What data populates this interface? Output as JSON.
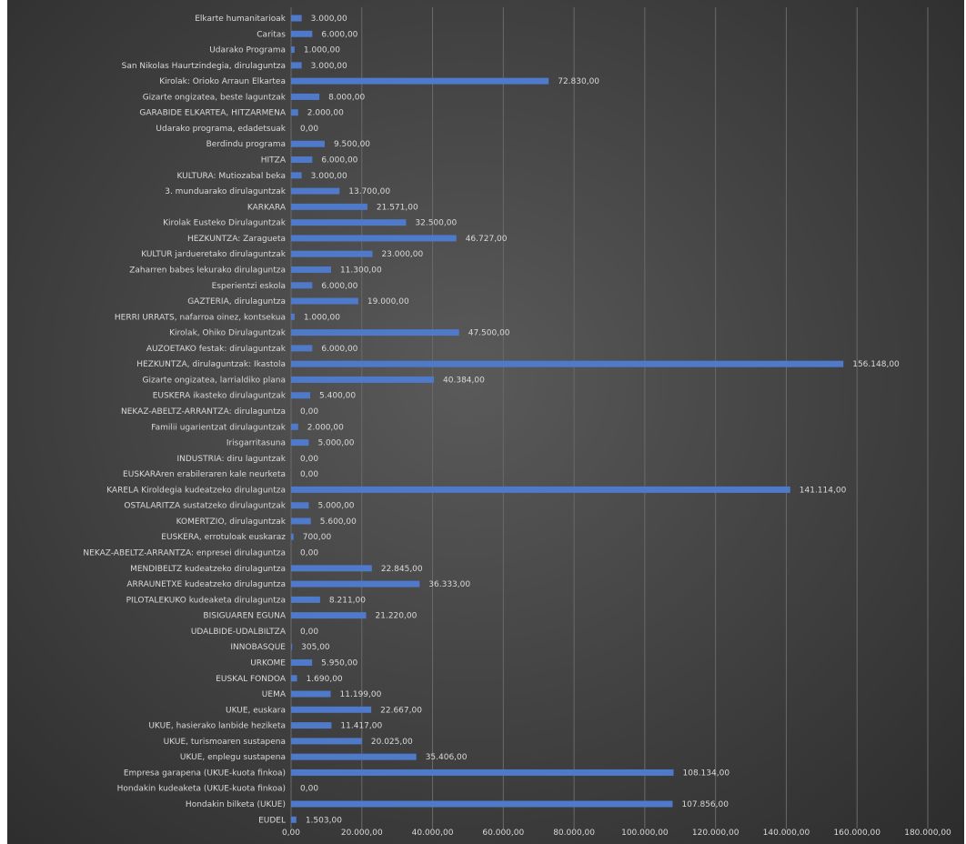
{
  "chart_data": {
    "type": "bar",
    "orientation": "horizontal",
    "title": "",
    "xlabel": "",
    "ylabel": "",
    "xlim": [
      0,
      180000
    ],
    "grid": true,
    "legend": "none",
    "bar_color": "#4f79c9",
    "background_color": "#3f3f3f",
    "x_ticks": [
      "0,00",
      "20.000,00",
      "40.000,00",
      "60.000,00",
      "80.000,00",
      "100.000,00",
      "120.000,00",
      "140.000,00",
      "160.000,00",
      "180.000,00"
    ],
    "categories": [
      "Elkarte humanitarioak",
      "Caritas",
      "Udarako Programa",
      "San Nikolas Haurtzindegia, dirulaguntza",
      "Kirolak: Orioko Arraun Elkartea",
      "Gizarte ongizatea, beste laguntzak",
      "GARABIDE ELKARTEA, HITZARMENA",
      "Udarako programa, edadetsuak",
      "Berdindu programa",
      "HITZA",
      "KULTURA: Mutiozabal beka",
      "3. munduarako dirulaguntzak",
      "KARKARA",
      "Kirolak Eusteko Dirulaguntzak",
      "HEZKUNTZA: Zaragueta",
      "KULTUR jardueretako dirulaguntzak",
      "Zaharren babes lekurako dirulaguntza",
      "Esperientzi eskola",
      "GAZTERIA, dirulaguntza",
      "HERRI URRATS, nafarroa oinez, kontsekua",
      "Kirolak, Ohiko Dirulaguntzak",
      "AUZOETAKO festak: dirulaguntzak",
      "HEZKUNTZA, dirulaguntzak: Ikastola",
      "Gizarte ongizatea, larrialdiko plana",
      "EUSKERA ikasteko dirulaguntzak",
      "NEKAZ-ABELTZ-ARRANTZA: dirulaguntza",
      "Familii ugarientzat dirulaguntzak",
      "Irisgarritasuna",
      "INDUSTRIA: diru laguntzak",
      "EUSKARAren erabileraren kale neurketa",
      "KARELA Kiroldegia kudeatzeko dirulaguntza",
      "OSTALARITZA sustatzeko dirulaguntzak",
      "KOMERTZIO, dirulaguntzak",
      "EUSKERA, errotuloak euskaraz",
      "NEKAZ-ABELTZ-ARRANTZA: enpresei dirulaguntza",
      "MENDIBELTZ kudeatzeko dirulaguntza",
      "ARRAUNETXE kudeatzeko dirulaguntza",
      "PILOTALEKUKO kudeaketa dirulaguntza",
      "BISIGUAREN EGUNA",
      "UDALBIDE-UDALBILTZA",
      "INNOBASQUE",
      "URKOME",
      "EUSKAL FONDOA",
      "UEMA",
      "UKUE, euskara",
      "UKUE, hasierako lanbide heziketa",
      "UKUE, turismoaren sustapena",
      "UKUE, enplegu sustapena",
      "Empresa garapena (UKUE-kuota finkoa)",
      "Hondakin kudeaketa (UKUE-kuota finkoa)",
      "Hondakin bilketa (UKUE)",
      "EUDEL"
    ],
    "values": [
      3000,
      6000,
      1000,
      3000,
      72830,
      8000,
      2000,
      0,
      9500,
      6000,
      3000,
      13700,
      21571,
      32500,
      46727,
      23000,
      11300,
      6000,
      19000,
      1000,
      47500,
      6000,
      156148,
      40384,
      5400,
      0,
      2000,
      5000,
      0,
      0,
      141114,
      5000,
      5600,
      700,
      0,
      22845,
      36333,
      8211,
      21220,
      0,
      305,
      5950,
      1690,
      11199,
      22667,
      11417,
      20025,
      35406,
      108134,
      0,
      107856,
      1503
    ],
    "value_labels": [
      "3.000,00",
      "6.000,00",
      "1.000,00",
      "3.000,00",
      "72.830,00",
      "8.000,00",
      "2.000,00",
      "0,00",
      "9.500,00",
      "6.000,00",
      "3.000,00",
      "13.700,00",
      "21.571,00",
      "32.500,00",
      "46.727,00",
      "23.000,00",
      "11.300,00",
      "6.000,00",
      "19.000,00",
      "1.000,00",
      "47.500,00",
      "6.000,00",
      "156.148,00",
      "40.384,00",
      "5.400,00",
      "0,00",
      "2.000,00",
      "5.000,00",
      "0,00",
      "0,00",
      "141.114,00",
      "5.000,00",
      "5.600,00",
      "700,00",
      "0,00",
      "22.845,00",
      "36.333,00",
      "8.211,00",
      "21.220,00",
      "0,00",
      "305,00",
      "5.950,00",
      "1.690,00",
      "11.199,00",
      "22.667,00",
      "11.417,00",
      "20.025,00",
      "35.406,00",
      "108.134,00",
      "0,00",
      "107.856,00",
      "1.503,00"
    ]
  }
}
